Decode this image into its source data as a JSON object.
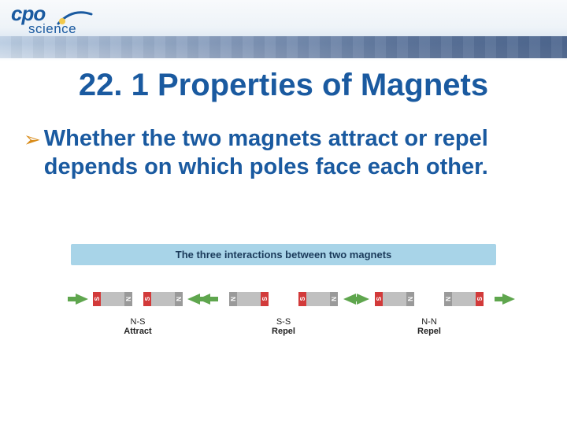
{
  "logo": {
    "top": "cpo",
    "bottom": "science"
  },
  "title": {
    "text": "22. 1 Properties of Magnets",
    "color": "#1a5aa0"
  },
  "bullet": {
    "arrow_color": "#d98c1a",
    "text": "Whether the two magnets attract or repel depends on which poles face each other.",
    "color": "#1a5aa0"
  },
  "diagram": {
    "header": "The three interactions between two magnets",
    "header_bg": "#a8d4e8",
    "arrow_color": "#5fa64e",
    "south_color": "#d23a3a",
    "north_color": "#9a9a9a",
    "pairs": [
      {
        "id": "ns-attract",
        "left_magnet": [
          "S",
          "N"
        ],
        "right_magnet": [
          "S",
          "N"
        ],
        "arrows": "inward",
        "caption_pair": "N-S",
        "caption_action": "Attract"
      },
      {
        "id": "ss-repel",
        "left_magnet": [
          "N",
          "S"
        ],
        "right_magnet": [
          "S",
          "N"
        ],
        "arrows": "outward",
        "caption_pair": "S-S",
        "caption_action": "Repel"
      },
      {
        "id": "nn-repel",
        "left_magnet": [
          "S",
          "N"
        ],
        "right_magnet": [
          "N",
          "S"
        ],
        "arrows": "outward",
        "caption_pair": "N-N",
        "caption_action": "Repel"
      }
    ]
  },
  "colors": {
    "logo": "#1a5aa0"
  }
}
